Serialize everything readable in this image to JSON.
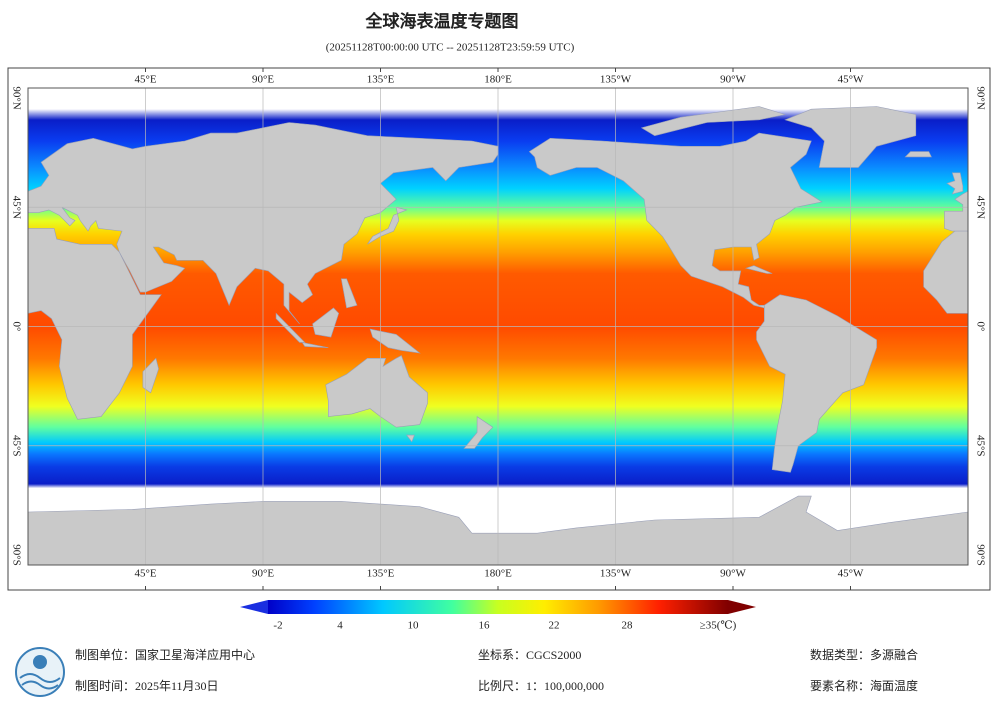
{
  "title": "全球海表温度专题图",
  "subtitle": "(20251128T00:00:00 UTC -- 20251128T23:59:59 UTC)",
  "graticule": {
    "longitudes": [
      "45°E",
      "90°E",
      "135°E",
      "180°E",
      "135°W",
      "90°W",
      "45°W"
    ],
    "latitudes": [
      "90°N",
      "45°N",
      "0°",
      "45°S",
      "90°S"
    ]
  },
  "colorbar": {
    "labels": [
      "-2",
      "4",
      "10",
      "16",
      "22",
      "28",
      "≥35(℃)"
    ]
  },
  "footer": {
    "unit": "制图单位：国家卫星海洋应用中心",
    "date": "制图时间：2025年11月30日",
    "crs": "坐标系：CGCS2000",
    "scale": "比例尺：1：100,000,000",
    "data_type": "数据类型：多源融合",
    "element": "要素名称：海面温度"
  }
}
